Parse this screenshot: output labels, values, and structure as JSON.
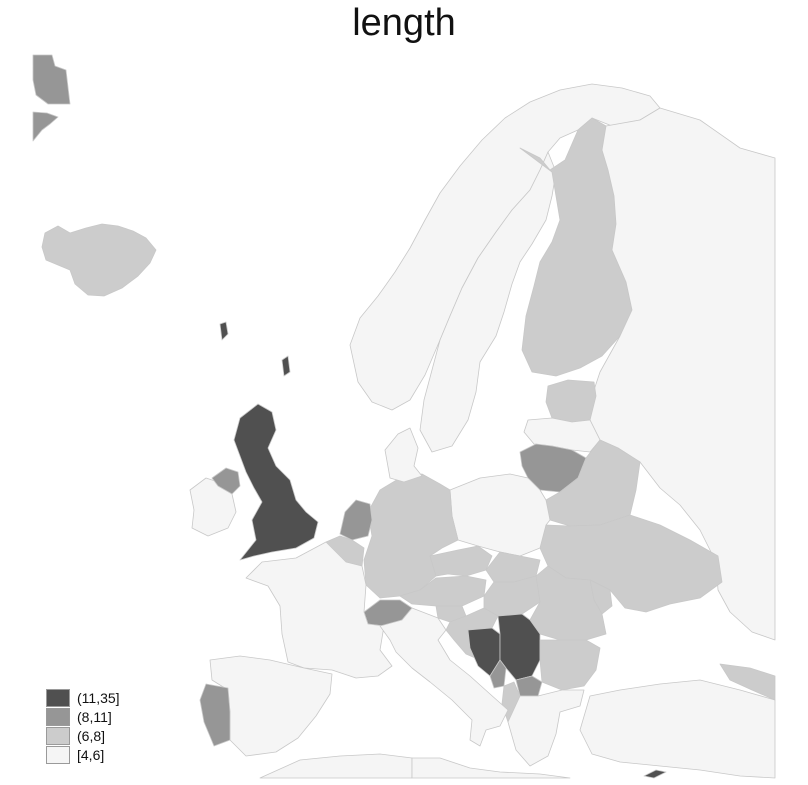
{
  "title": "length",
  "palette": {
    "c11_35": "#505050",
    "c8_11": "#969696",
    "c6_8": "#cccccc",
    "c4_6": "#f5f5f5",
    "border": "#c8c8c8"
  },
  "legend": [
    {
      "label": "(11,35]",
      "color": "#505050"
    },
    {
      "label": "(8,11]",
      "color": "#969696"
    },
    {
      "label": "(6,8]",
      "color": "#cccccc"
    },
    {
      "label": "[4,6]",
      "color": "#f5f5f5"
    }
  ],
  "regions": [
    {
      "name": "United Kingdom",
      "class": "(11,35]"
    },
    {
      "name": "Bosnia and Herzegovina",
      "class": "(11,35]"
    },
    {
      "name": "Serbia",
      "class": "(11,35]"
    },
    {
      "name": "Northern Cyprus",
      "class": "(11,35]"
    },
    {
      "name": "Greenland",
      "class": "(8,11]"
    },
    {
      "name": "Netherlands",
      "class": "(8,11]"
    },
    {
      "name": "Switzerland",
      "class": "(8,11]"
    },
    {
      "name": "Lithuania",
      "class": "(8,11]"
    },
    {
      "name": "North Macedonia",
      "class": "(8,11]"
    },
    {
      "name": "Northern Ireland",
      "class": "(8,11]"
    },
    {
      "name": "Montenegro",
      "class": "(8,11]"
    },
    {
      "name": "Portugal",
      "class": "(8,11]"
    },
    {
      "name": "Iceland",
      "class": "(6,8]"
    },
    {
      "name": "Finland",
      "class": "(6,8]"
    },
    {
      "name": "Estonia",
      "class": "(6,8]"
    },
    {
      "name": "Germany",
      "class": "(6,8]"
    },
    {
      "name": "Belgium",
      "class": "(6,8]"
    },
    {
      "name": "Czechia",
      "class": "(6,8]"
    },
    {
      "name": "Austria",
      "class": "(6,8]"
    },
    {
      "name": "Slovakia",
      "class": "(6,8]"
    },
    {
      "name": "Hungary",
      "class": "(6,8]"
    },
    {
      "name": "Romania",
      "class": "(6,8]"
    },
    {
      "name": "Ukraine",
      "class": "(6,8]"
    },
    {
      "name": "Belarus",
      "class": "(6,8]"
    },
    {
      "name": "Bulgaria",
      "class": "(6,8]"
    },
    {
      "name": "Croatia",
      "class": "(6,8]"
    },
    {
      "name": "Slovenia",
      "class": "(6,8]"
    },
    {
      "name": "Moldova",
      "class": "(6,8]"
    },
    {
      "name": "Albania",
      "class": "(6,8]"
    },
    {
      "name": "Georgia",
      "class": "(6,8]"
    },
    {
      "name": "Norway",
      "class": "[4,6]"
    },
    {
      "name": "Sweden",
      "class": "[4,6]"
    },
    {
      "name": "Russia",
      "class": "[4,6]"
    },
    {
      "name": "Latvia",
      "class": "[4,6]"
    },
    {
      "name": "Poland",
      "class": "[4,6]"
    },
    {
      "name": "Denmark",
      "class": "[4,6]"
    },
    {
      "name": "Ireland",
      "class": "[4,6]"
    },
    {
      "name": "France",
      "class": "[4,6]"
    },
    {
      "name": "Spain",
      "class": "[4,6]"
    },
    {
      "name": "Italy",
      "class": "[4,6]"
    },
    {
      "name": "Greece",
      "class": "[4,6]"
    },
    {
      "name": "Turkey",
      "class": "[4,6]"
    },
    {
      "name": "North Africa",
      "class": "[4,6]"
    }
  ]
}
